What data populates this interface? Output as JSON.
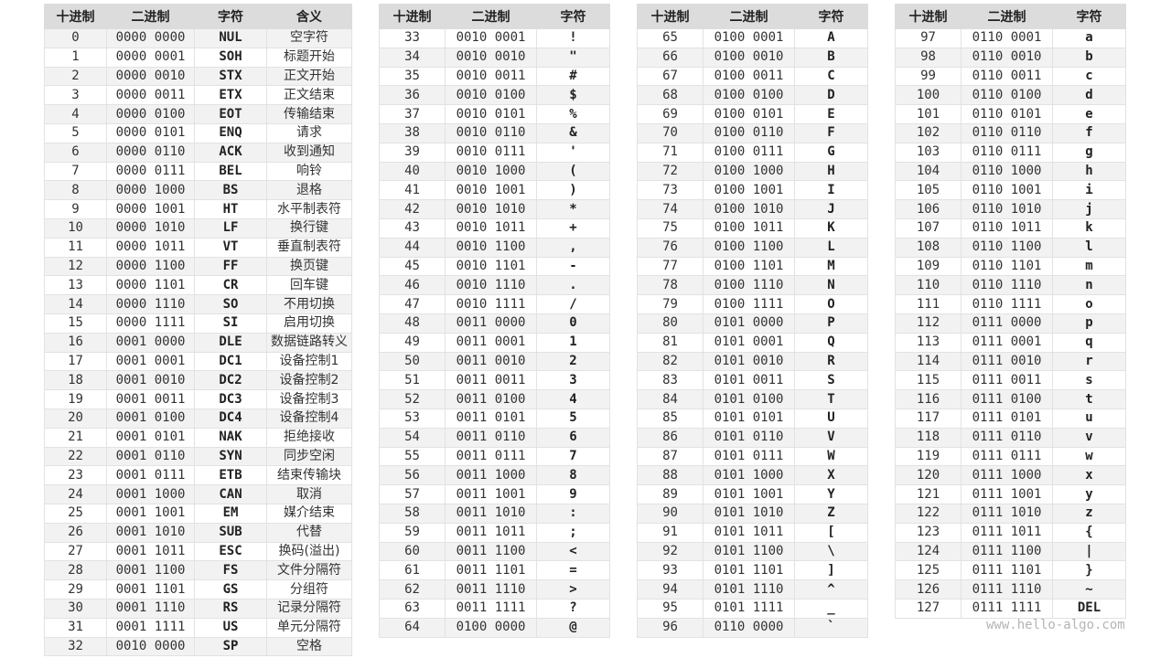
{
  "tables": [
    {
      "headers": [
        "十进制",
        "二进制",
        "字符",
        "含义"
      ],
      "rows": [
        [
          "0",
          "0000 0000",
          "NUL",
          "空字符"
        ],
        [
          "1",
          "0000 0001",
          "SOH",
          "标题开始"
        ],
        [
          "2",
          "0000 0010",
          "STX",
          "正文开始"
        ],
        [
          "3",
          "0000 0011",
          "ETX",
          "正文结束"
        ],
        [
          "4",
          "0000 0100",
          "EOT",
          "传输结束"
        ],
        [
          "5",
          "0000 0101",
          "ENQ",
          "请求"
        ],
        [
          "6",
          "0000 0110",
          "ACK",
          "收到通知"
        ],
        [
          "7",
          "0000 0111",
          "BEL",
          "响铃"
        ],
        [
          "8",
          "0000 1000",
          "BS",
          "退格"
        ],
        [
          "9",
          "0000 1001",
          "HT",
          "水平制表符"
        ],
        [
          "10",
          "0000 1010",
          "LF",
          "换行键"
        ],
        [
          "11",
          "0000 1011",
          "VT",
          "垂直制表符"
        ],
        [
          "12",
          "0000 1100",
          "FF",
          "换页键"
        ],
        [
          "13",
          "0000 1101",
          "CR",
          "回车键"
        ],
        [
          "14",
          "0000 1110",
          "SO",
          "不用切换"
        ],
        [
          "15",
          "0000 1111",
          "SI",
          "启用切换"
        ],
        [
          "16",
          "0001 0000",
          "DLE",
          "数据链路转义"
        ],
        [
          "17",
          "0001 0001",
          "DC1",
          "设备控制1"
        ],
        [
          "18",
          "0001 0010",
          "DC2",
          "设备控制2"
        ],
        [
          "19",
          "0001 0011",
          "DC3",
          "设备控制3"
        ],
        [
          "20",
          "0001 0100",
          "DC4",
          "设备控制4"
        ],
        [
          "21",
          "0001 0101",
          "NAK",
          "拒绝接收"
        ],
        [
          "22",
          "0001 0110",
          "SYN",
          "同步空闲"
        ],
        [
          "23",
          "0001 0111",
          "ETB",
          "结束传输块"
        ],
        [
          "24",
          "0001 1000",
          "CAN",
          "取消"
        ],
        [
          "25",
          "0001 1001",
          "EM",
          "媒介结束"
        ],
        [
          "26",
          "0001 1010",
          "SUB",
          "代替"
        ],
        [
          "27",
          "0001 1011",
          "ESC",
          "换码(溢出)"
        ],
        [
          "28",
          "0001 1100",
          "FS",
          "文件分隔符"
        ],
        [
          "29",
          "0001 1101",
          "GS",
          "分组符"
        ],
        [
          "30",
          "0001 1110",
          "RS",
          "记录分隔符"
        ],
        [
          "31",
          "0001 1111",
          "US",
          "单元分隔符"
        ],
        [
          "32",
          "0010 0000",
          "SP",
          "空格"
        ]
      ]
    },
    {
      "headers": [
        "十进制",
        "二进制",
        "字符"
      ],
      "rows": [
        [
          "33",
          "0010 0001",
          "!"
        ],
        [
          "34",
          "0010 0010",
          "\""
        ],
        [
          "35",
          "0010 0011",
          "#"
        ],
        [
          "36",
          "0010 0100",
          "$"
        ],
        [
          "37",
          "0010 0101",
          "%"
        ],
        [
          "38",
          "0010 0110",
          "&"
        ],
        [
          "39",
          "0010 0111",
          "'"
        ],
        [
          "40",
          "0010 1000",
          "("
        ],
        [
          "41",
          "0010 1001",
          ")"
        ],
        [
          "42",
          "0010 1010",
          "*"
        ],
        [
          "43",
          "0010 1011",
          "+"
        ],
        [
          "44",
          "0010 1100",
          ","
        ],
        [
          "45",
          "0010 1101",
          "-"
        ],
        [
          "46",
          "0010 1110",
          "."
        ],
        [
          "47",
          "0010 1111",
          "/"
        ],
        [
          "48",
          "0011 0000",
          "0"
        ],
        [
          "49",
          "0011 0001",
          "1"
        ],
        [
          "50",
          "0011 0010",
          "2"
        ],
        [
          "51",
          "0011 0011",
          "3"
        ],
        [
          "52",
          "0011 0100",
          "4"
        ],
        [
          "53",
          "0011 0101",
          "5"
        ],
        [
          "54",
          "0011 0110",
          "6"
        ],
        [
          "55",
          "0011 0111",
          "7"
        ],
        [
          "56",
          "0011 1000",
          "8"
        ],
        [
          "57",
          "0011 1001",
          "9"
        ],
        [
          "58",
          "0011 1010",
          ":"
        ],
        [
          "59",
          "0011 1011",
          ";"
        ],
        [
          "60",
          "0011 1100",
          "<"
        ],
        [
          "61",
          "0011 1101",
          "="
        ],
        [
          "62",
          "0011 1110",
          ">"
        ],
        [
          "63",
          "0011 1111",
          "?"
        ],
        [
          "64",
          "0100 0000",
          "@"
        ]
      ]
    },
    {
      "headers": [
        "十进制",
        "二进制",
        "字符"
      ],
      "rows": [
        [
          "65",
          "0100 0001",
          "A"
        ],
        [
          "66",
          "0100 0010",
          "B"
        ],
        [
          "67",
          "0100 0011",
          "C"
        ],
        [
          "68",
          "0100 0100",
          "D"
        ],
        [
          "69",
          "0100 0101",
          "E"
        ],
        [
          "70",
          "0100 0110",
          "F"
        ],
        [
          "71",
          "0100 0111",
          "G"
        ],
        [
          "72",
          "0100 1000",
          "H"
        ],
        [
          "73",
          "0100 1001",
          "I"
        ],
        [
          "74",
          "0100 1010",
          "J"
        ],
        [
          "75",
          "0100 1011",
          "K"
        ],
        [
          "76",
          "0100 1100",
          "L"
        ],
        [
          "77",
          "0100 1101",
          "M"
        ],
        [
          "78",
          "0100 1110",
          "N"
        ],
        [
          "79",
          "0100 1111",
          "O"
        ],
        [
          "80",
          "0101 0000",
          "P"
        ],
        [
          "81",
          "0101 0001",
          "Q"
        ],
        [
          "82",
          "0101 0010",
          "R"
        ],
        [
          "83",
          "0101 0011",
          "S"
        ],
        [
          "84",
          "0101 0100",
          "T"
        ],
        [
          "85",
          "0101 0101",
          "U"
        ],
        [
          "86",
          "0101 0110",
          "V"
        ],
        [
          "87",
          "0101 0111",
          "W"
        ],
        [
          "88",
          "0101 1000",
          "X"
        ],
        [
          "89",
          "0101 1001",
          "Y"
        ],
        [
          "90",
          "0101 1010",
          "Z"
        ],
        [
          "91",
          "0101 1011",
          "["
        ],
        [
          "92",
          "0101 1100",
          "\\"
        ],
        [
          "93",
          "0101 1101",
          "]"
        ],
        [
          "94",
          "0101 1110",
          "^"
        ],
        [
          "95",
          "0101 1111",
          "_"
        ],
        [
          "96",
          "0110 0000",
          "`"
        ]
      ]
    },
    {
      "headers": [
        "十进制",
        "二进制",
        "字符"
      ],
      "rows": [
        [
          "97",
          "0110 0001",
          "a"
        ],
        [
          "98",
          "0110 0010",
          "b"
        ],
        [
          "99",
          "0110 0011",
          "c"
        ],
        [
          "100",
          "0110 0100",
          "d"
        ],
        [
          "101",
          "0110 0101",
          "e"
        ],
        [
          "102",
          "0110 0110",
          "f"
        ],
        [
          "103",
          "0110 0111",
          "g"
        ],
        [
          "104",
          "0110 1000",
          "h"
        ],
        [
          "105",
          "0110 1001",
          "i"
        ],
        [
          "106",
          "0110 1010",
          "j"
        ],
        [
          "107",
          "0110 1011",
          "k"
        ],
        [
          "108",
          "0110 1100",
          "l"
        ],
        [
          "109",
          "0110 1101",
          "m"
        ],
        [
          "110",
          "0110 1110",
          "n"
        ],
        [
          "111",
          "0110 1111",
          "o"
        ],
        [
          "112",
          "0111 0000",
          "p"
        ],
        [
          "113",
          "0111 0001",
          "q"
        ],
        [
          "114",
          "0111 0010",
          "r"
        ],
        [
          "115",
          "0111 0011",
          "s"
        ],
        [
          "116",
          "0111 0100",
          "t"
        ],
        [
          "117",
          "0111 0101",
          "u"
        ],
        [
          "118",
          "0111 0110",
          "v"
        ],
        [
          "119",
          "0111 0111",
          "w"
        ],
        [
          "120",
          "0111 1000",
          "x"
        ],
        [
          "121",
          "0111 1001",
          "y"
        ],
        [
          "122",
          "0111 1010",
          "z"
        ],
        [
          "123",
          "0111 1011",
          "{"
        ],
        [
          "124",
          "0111 1100",
          "|"
        ],
        [
          "125",
          "0111 1101",
          "}"
        ],
        [
          "126",
          "0111 1110",
          "~"
        ],
        [
          "127",
          "0111 1111",
          "DEL"
        ]
      ]
    }
  ],
  "watermark": "www.hello-algo.com",
  "colors": {
    "header_bg": "#dcdcdc",
    "stripe_bg": "#f2f2f2",
    "border": "#e2e2e2",
    "watermark": "#b4b4b4"
  }
}
